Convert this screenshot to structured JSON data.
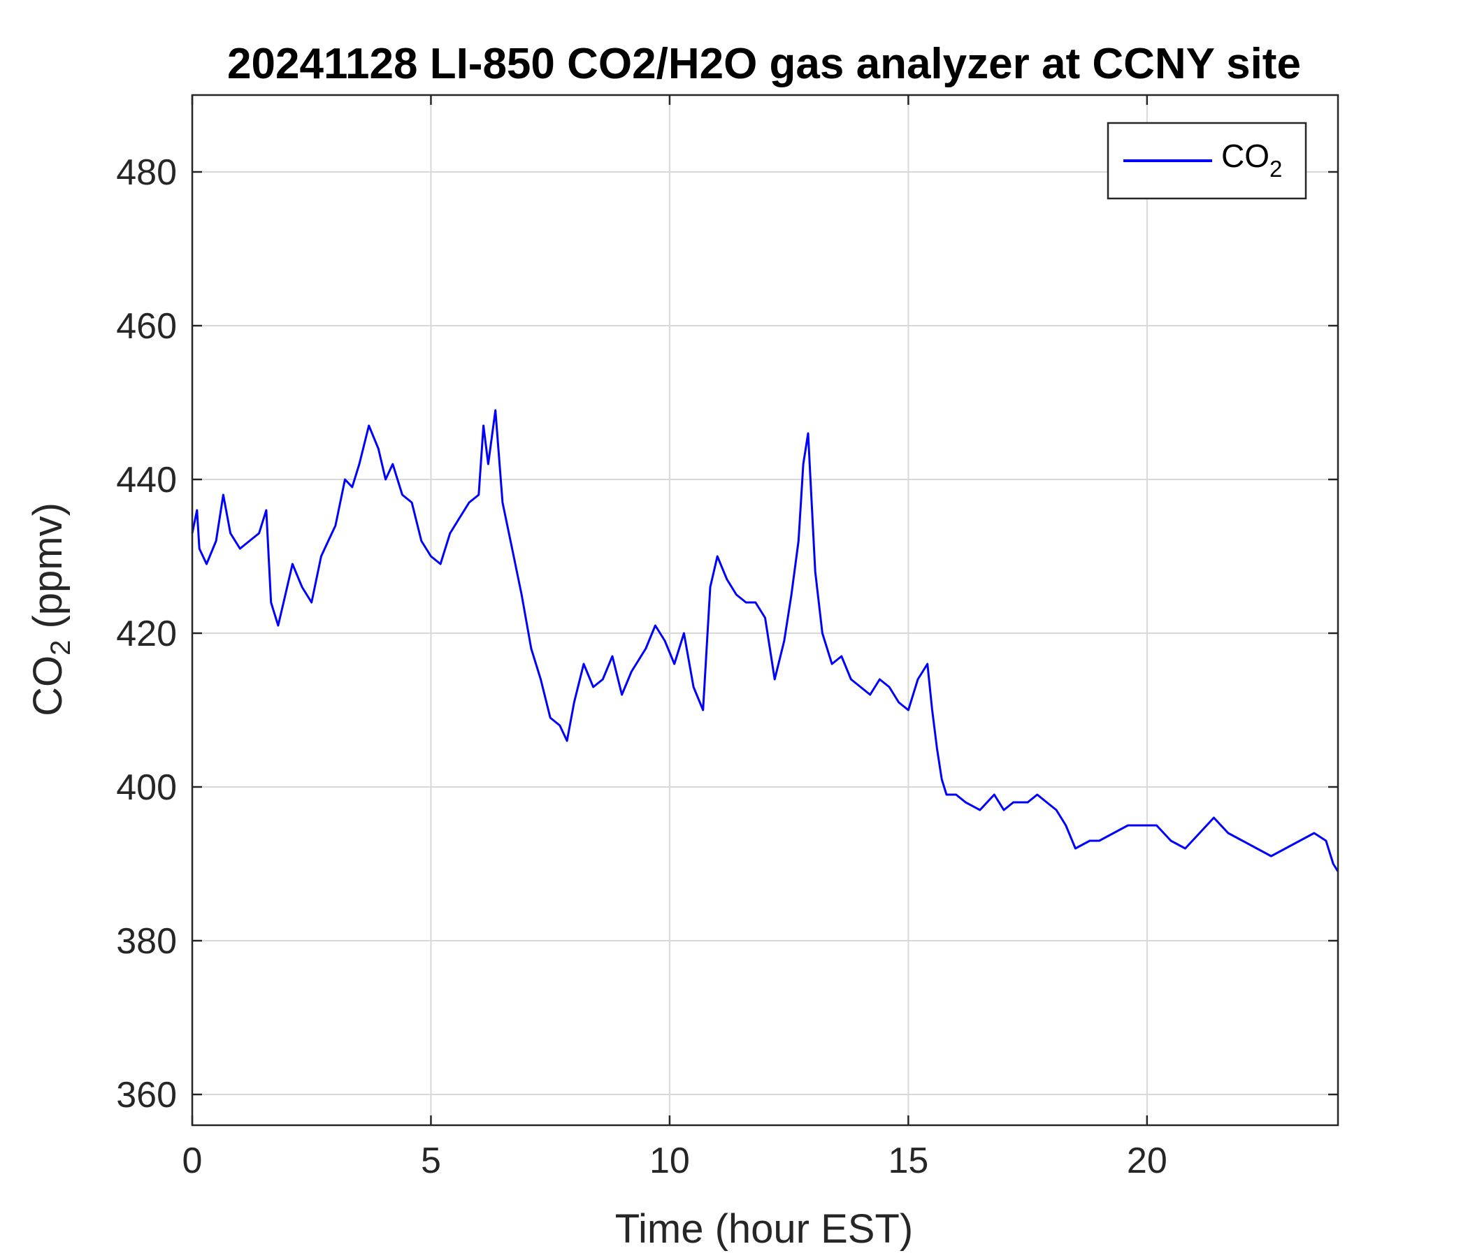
{
  "chart_data": {
    "type": "line",
    "title": "20241128 LI-850 CO2/H2O gas analyzer at CCNY site",
    "xlabel": "Time (hour EST)",
    "ylabel_main": "CO",
    "ylabel_sub": "2",
    "ylabel_tail": " (ppmv)",
    "xlim": [
      0,
      24
    ],
    "ylim": [
      356,
      490
    ],
    "xticks": [
      0,
      5,
      10,
      15,
      20
    ],
    "yticks": [
      360,
      380,
      400,
      420,
      440,
      460,
      480
    ],
    "grid": true,
    "legend_position": "top-right",
    "series": [
      {
        "name_main": "CO",
        "name_sub": "2",
        "color": "#0000ff",
        "x": [
          0.0,
          0.1,
          0.15,
          0.3,
          0.5,
          0.65,
          0.8,
          1.0,
          1.2,
          1.4,
          1.55,
          1.65,
          1.8,
          1.95,
          2.1,
          2.3,
          2.5,
          2.7,
          2.85,
          3.0,
          3.2,
          3.35,
          3.5,
          3.7,
          3.9,
          4.05,
          4.2,
          4.4,
          4.6,
          4.8,
          5.0,
          5.2,
          5.4,
          5.6,
          5.8,
          6.0,
          6.1,
          6.2,
          6.35,
          6.5,
          6.7,
          6.9,
          7.1,
          7.3,
          7.5,
          7.7,
          7.85,
          8.0,
          8.2,
          8.4,
          8.6,
          8.8,
          9.0,
          9.2,
          9.5,
          9.7,
          9.9,
          10.1,
          10.3,
          10.5,
          10.7,
          10.85,
          11.0,
          11.2,
          11.4,
          11.6,
          11.8,
          12.0,
          12.2,
          12.4,
          12.55,
          12.7,
          12.8,
          12.9,
          13.05,
          13.2,
          13.4,
          13.6,
          13.8,
          14.0,
          14.2,
          14.4,
          14.6,
          14.8,
          15.0,
          15.2,
          15.4,
          15.5,
          15.6,
          15.7,
          15.8,
          16.0,
          16.2,
          16.5,
          16.8,
          17.0,
          17.2,
          17.5,
          17.7,
          17.9,
          18.1,
          18.3,
          18.5,
          18.8,
          19.0,
          19.3,
          19.6,
          19.9,
          20.2,
          20.5,
          20.8,
          21.1,
          21.4,
          21.7,
          22.0,
          22.3,
          22.6,
          22.9,
          23.2,
          23.5,
          23.75,
          23.9,
          24.0
        ],
        "y": [
          433,
          436,
          431,
          429,
          432,
          438,
          433,
          431,
          432,
          433,
          436,
          424,
          421,
          425,
          429,
          426,
          424,
          430,
          432,
          434,
          440,
          439,
          442,
          447,
          444,
          440,
          442,
          438,
          437,
          432,
          430,
          429,
          433,
          435,
          437,
          438,
          447,
          442,
          449,
          437,
          431,
          425,
          418,
          414,
          409,
          408,
          406,
          411,
          416,
          413,
          414,
          417,
          412,
          415,
          418,
          421,
          419,
          416,
          420,
          413,
          410,
          426,
          430,
          427,
          425,
          424,
          424,
          422,
          414,
          419,
          425,
          432,
          442,
          446,
          428,
          420,
          416,
          417,
          414,
          413,
          412,
          414,
          413,
          411,
          410,
          414,
          416,
          410,
          405,
          401,
          399,
          399,
          398,
          397,
          399,
          397,
          398,
          398,
          399,
          398,
          397,
          395,
          392,
          393,
          393,
          394,
          395,
          395,
          395,
          393,
          392,
          394,
          396,
          394,
          393,
          392,
          391,
          392,
          393,
          394,
          393,
          390,
          389
        ]
      }
    ]
  }
}
